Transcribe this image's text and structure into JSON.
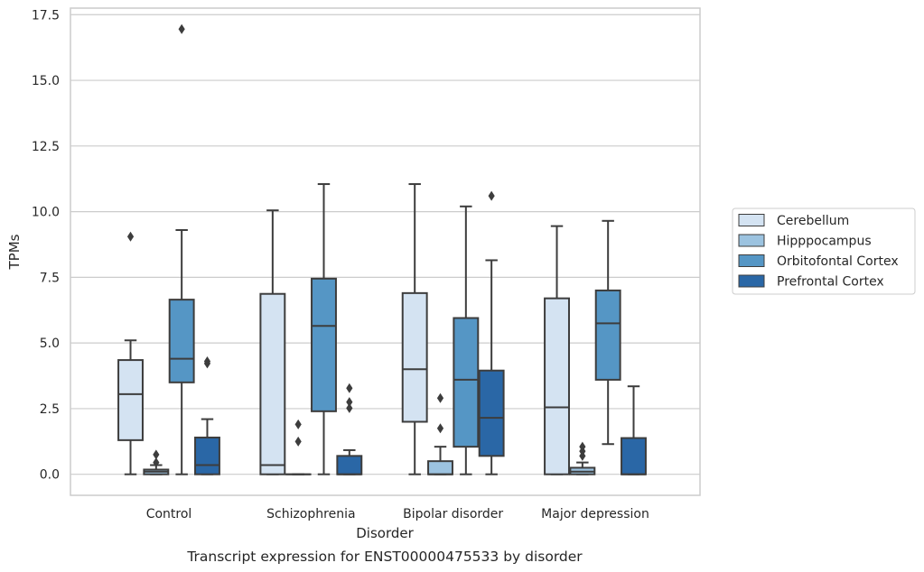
{
  "chart_data": {
    "type": "box",
    "caption": "Transcript expression for ENST00000475533 by disorder",
    "xlabel": "Disorder",
    "ylabel": "TPMs",
    "ylim": [
      -0.8,
      17.75
    ],
    "yticks": [
      "0.0",
      "2.5",
      "5.0",
      "7.5",
      "10.0",
      "12.5",
      "15.0",
      "17.5"
    ],
    "grid": "horizontal",
    "legend_position": "right",
    "categories": [
      "Control",
      "Schizophrenia",
      "Bipolar disorder",
      "Major depression"
    ],
    "series": [
      {
        "name": "Cerebellum",
        "color": "#d4e3f2",
        "boxes": [
          {
            "whislo": 0.0,
            "q1": 1.3,
            "med": 3.05,
            "q3": 4.35,
            "whishi": 5.1,
            "fliers": [
              9.05
            ]
          },
          {
            "whislo": 0.0,
            "q1": 0.0,
            "med": 0.35,
            "q3": 6.87,
            "whishi": 10.05,
            "fliers": []
          },
          {
            "whislo": 0.0,
            "q1": 2.0,
            "med": 4.0,
            "q3": 6.9,
            "whishi": 11.05,
            "fliers": []
          },
          {
            "whislo": 0.0,
            "q1": 0.0,
            "med": 2.55,
            "q3": 6.7,
            "whishi": 9.45,
            "fliers": []
          }
        ]
      },
      {
        "name": "Hipppocampus",
        "color": "#9cc3e0",
        "boxes": [
          {
            "whislo": 0.0,
            "q1": 0.0,
            "med": 0.1,
            "q3": 0.18,
            "whishi": 0.35,
            "fliers": [
              0.45,
              0.75
            ]
          },
          {
            "whislo": 0.0,
            "q1": 0.0,
            "med": 0.0,
            "q3": 0.0,
            "whishi": 0.0,
            "fliers": [
              1.25,
              1.9
            ]
          },
          {
            "whislo": 0.0,
            "q1": 0.0,
            "med": 0.0,
            "q3": 0.5,
            "whishi": 1.05,
            "fliers": [
              1.75,
              2.9
            ]
          },
          {
            "whislo": 0.0,
            "q1": 0.0,
            "med": 0.1,
            "q3": 0.25,
            "whishi": 0.45,
            "fliers": [
              0.7,
              0.88,
              1.05
            ]
          }
        ]
      },
      {
        "name": "Orbitofontal Cortex",
        "color": "#5596c5",
        "boxes": [
          {
            "whislo": 0.0,
            "q1": 3.5,
            "med": 4.4,
            "q3": 6.65,
            "whishi": 9.3,
            "fliers": [
              16.95
            ]
          },
          {
            "whislo": 0.0,
            "q1": 2.4,
            "med": 5.65,
            "q3": 7.45,
            "whishi": 11.05,
            "fliers": []
          },
          {
            "whislo": 0.0,
            "q1": 1.05,
            "med": 3.6,
            "q3": 5.95,
            "whishi": 10.2,
            "fliers": []
          },
          {
            "whislo": 1.15,
            "q1": 3.6,
            "med": 5.75,
            "q3": 7.0,
            "whishi": 9.65,
            "fliers": []
          }
        ]
      },
      {
        "name": "Prefrontal Cortex",
        "color": "#2a67a6",
        "boxes": [
          {
            "whislo": 0.0,
            "q1": 0.0,
            "med": 0.35,
            "q3": 1.4,
            "whishi": 2.1,
            "fliers": [
              4.22,
              4.3
            ]
          },
          {
            "whislo": 0.0,
            "q1": 0.0,
            "med": 0.0,
            "q3": 0.7,
            "whishi": 0.92,
            "fliers": [
              2.52,
              2.75,
              3.28
            ]
          },
          {
            "whislo": 0.0,
            "q1": 0.7,
            "med": 2.15,
            "q3": 3.95,
            "whishi": 8.15,
            "fliers": [
              10.6
            ]
          },
          {
            "whislo": 0.0,
            "q1": 0.0,
            "med": 0.0,
            "q3": 1.38,
            "whishi": 3.35,
            "fliers": []
          }
        ]
      }
    ]
  }
}
